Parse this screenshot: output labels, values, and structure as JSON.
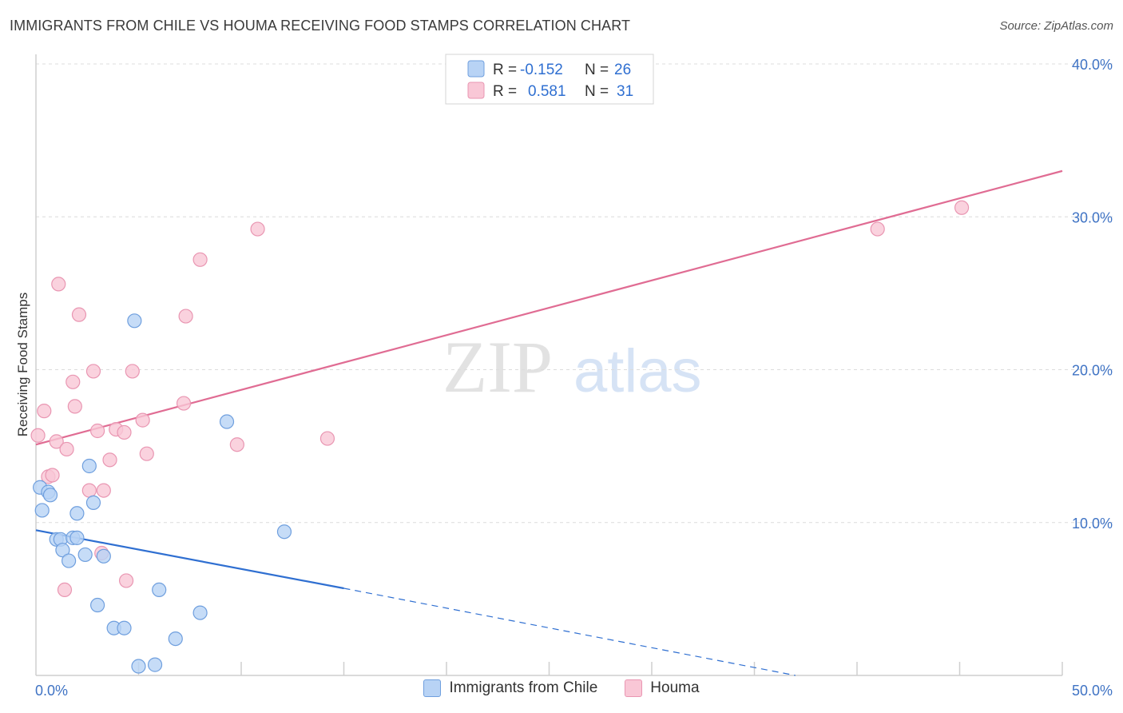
{
  "title": "IMMIGRANTS FROM CHILE VS HOUMA RECEIVING FOOD STAMPS CORRELATION CHART",
  "source": "Source: ZipAtlas.com",
  "watermark": {
    "zip": "ZIP",
    "atlas": "atlas"
  },
  "colors": {
    "blue_fill": "#b8d3f5",
    "blue_stroke": "#6f9fde",
    "blue_line": "#2f6fd1",
    "pink_fill": "#f9c7d6",
    "pink_stroke": "#e996b2",
    "pink_line": "#e06c93",
    "tick_text": "#3f73c4",
    "grid": "#dcdcdc"
  },
  "legend": {
    "rows": [
      {
        "r_label": "R =",
        "r_value": "-0.152",
        "n_label": "N =",
        "n_value": "26",
        "color": "#b8d3f5"
      },
      {
        "r_label": "R =",
        "r_value": " 0.581",
        "n_label": "N =",
        "n_value": "31",
        "color": "#f9c7d6"
      }
    ]
  },
  "bottom_legend": [
    {
      "label": "Immigrants from Chile",
      "color": "#b8d3f5"
    },
    {
      "label": "Houma",
      "color": "#f9c7d6"
    }
  ],
  "chart_data": {
    "type": "scatter",
    "title": "IMMIGRANTS FROM CHILE VS HOUMA RECEIVING FOOD STAMPS CORRELATION CHART",
    "xlabel": "",
    "ylabel": "Receiving Food Stamps",
    "xlim": [
      0,
      50
    ],
    "ylim": [
      0,
      40
    ],
    "x_tick_labels": [
      "0.0%",
      "50.0%"
    ],
    "y_ticks": [
      10,
      20,
      30,
      40
    ],
    "y_tick_labels": [
      "10.0%",
      "20.0%",
      "30.0%",
      "40.0%"
    ],
    "grid": true,
    "legend_position": "top-center",
    "series": [
      {
        "name": "Immigrants from Chile",
        "r": -0.152,
        "n": 26,
        "trend": {
          "x0": 0,
          "y0": 9.5,
          "x1": 15,
          "y1": 5.7,
          "dash_to_x": 37,
          "dash_to_y": 0
        },
        "points": [
          [
            0.2,
            12.3
          ],
          [
            0.3,
            10.8
          ],
          [
            0.6,
            12.0
          ],
          [
            0.7,
            11.8
          ],
          [
            1.0,
            8.9
          ],
          [
            1.2,
            8.9
          ],
          [
            1.3,
            8.2
          ],
          [
            1.6,
            7.5
          ],
          [
            1.8,
            9.0
          ],
          [
            2.0,
            9.0
          ],
          [
            2.0,
            10.6
          ],
          [
            2.4,
            7.9
          ],
          [
            2.6,
            13.7
          ],
          [
            2.8,
            11.3
          ],
          [
            3.0,
            4.6
          ],
          [
            3.3,
            7.8
          ],
          [
            3.8,
            3.1
          ],
          [
            4.3,
            3.1
          ],
          [
            4.8,
            23.2
          ],
          [
            5.0,
            0.6
          ],
          [
            5.8,
            0.7
          ],
          [
            6.0,
            5.6
          ],
          [
            6.8,
            2.4
          ],
          [
            8.0,
            4.1
          ],
          [
            9.3,
            16.6
          ],
          [
            12.1,
            9.4
          ]
        ]
      },
      {
        "name": "Houma",
        "r": 0.581,
        "n": 31,
        "trend": {
          "x0": 0,
          "y0": 15.1,
          "x1": 50,
          "y1": 33.0
        },
        "points": [
          [
            0.1,
            15.7
          ],
          [
            0.4,
            17.3
          ],
          [
            0.6,
            13.0
          ],
          [
            0.8,
            13.1
          ],
          [
            1.0,
            15.3
          ],
          [
            1.1,
            25.6
          ],
          [
            1.4,
            5.6
          ],
          [
            1.5,
            14.8
          ],
          [
            1.8,
            19.2
          ],
          [
            1.9,
            17.6
          ],
          [
            2.1,
            23.6
          ],
          [
            2.6,
            12.1
          ],
          [
            2.8,
            19.9
          ],
          [
            3.0,
            16.0
          ],
          [
            3.2,
            8.0
          ],
          [
            3.3,
            12.1
          ],
          [
            3.6,
            14.1
          ],
          [
            3.9,
            16.1
          ],
          [
            4.3,
            15.9
          ],
          [
            4.4,
            6.2
          ],
          [
            4.7,
            19.9
          ],
          [
            5.2,
            16.7
          ],
          [
            5.4,
            14.5
          ],
          [
            7.2,
            17.8
          ],
          [
            7.3,
            23.5
          ],
          [
            8.0,
            27.2
          ],
          [
            9.8,
            15.1
          ],
          [
            10.8,
            29.2
          ],
          [
            14.2,
            15.5
          ],
          [
            41.0,
            29.2
          ],
          [
            45.1,
            30.6
          ]
        ]
      }
    ]
  }
}
